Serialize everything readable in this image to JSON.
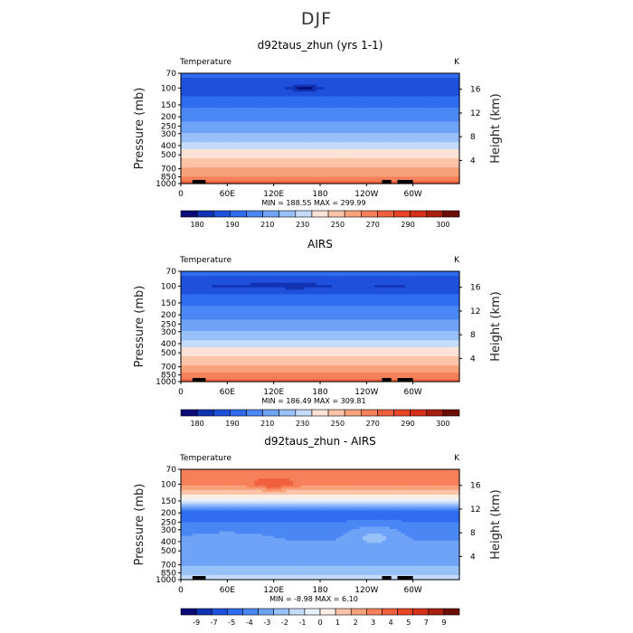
{
  "page_title": "DJF",
  "colors": {
    "temperature_scale": [
      "#0a0a78",
      "#1232b4",
      "#1e50dc",
      "#2f6cf0",
      "#4a87f5",
      "#6ea3f7",
      "#98c0f9",
      "#c4dbfb",
      "#fde3d6",
      "#fbc4a9",
      "#f8a27c",
      "#f5805a",
      "#f0603c",
      "#e84527",
      "#d5301a",
      "#a81f10",
      "#6b0c05"
    ],
    "difference_scale": [
      "#0a0a78",
      "#1232b4",
      "#1e50dc",
      "#2f6cf0",
      "#4a87f5",
      "#6ea3f7",
      "#98c0f9",
      "#c4dbfb",
      "#e8f0fb",
      "#fdeee6",
      "#fbc4a9",
      "#f8a27c",
      "#f5805a",
      "#f0603c",
      "#e84527",
      "#d5301a",
      "#a81f10",
      "#6b0c05"
    ]
  },
  "chart_data": [
    {
      "type": "heatmap",
      "title": "d92taus_zhun (yrs 1-1)",
      "subtitle_left": "Temperature",
      "subtitle_right": "K",
      "ylabel": "Pressure (mb)",
      "ylabel_right": "Height (km)",
      "x_ticks": [
        "0",
        "60E",
        "120E",
        "180",
        "120W",
        "60W"
      ],
      "x_tick_lon": [
        0,
        60,
        120,
        180,
        240,
        300
      ],
      "xlim": [
        0,
        360
      ],
      "y_ticks": [
        "70",
        "100",
        "150",
        "200",
        "250",
        "300",
        "400",
        "500",
        "700",
        "850",
        "1000"
      ],
      "y_tick_p": [
        70,
        100,
        150,
        200,
        250,
        300,
        400,
        500,
        700,
        850,
        1000
      ],
      "ylim": [
        1000,
        70
      ],
      "height_ticks": [
        "16",
        "12",
        "8",
        "4"
      ],
      "height_tick_km": [
        16,
        12,
        8,
        4
      ],
      "minmax_label": "MIN = 188.55   MAX = 299.99",
      "min": 188.55,
      "max": 299.99,
      "profile": [
        [
          70,
          205
        ],
        [
          100,
          192
        ],
        [
          150,
          208
        ],
        [
          200,
          216
        ],
        [
          250,
          224
        ],
        [
          300,
          231
        ],
        [
          400,
          245
        ],
        [
          500,
          256
        ],
        [
          700,
          271
        ],
        [
          850,
          281
        ],
        [
          1000,
          294
        ]
      ],
      "features": [
        {
          "lon": 160,
          "p": 100,
          "dlon": 20,
          "dlogp": 0.05,
          "amp": -10
        }
      ],
      "colorbar": {
        "labels": [
          "180",
          "190",
          "210",
          "230",
          "250",
          "270",
          "290",
          "300"
        ],
        "levels": [
          180,
          185,
          190,
          200,
          210,
          220,
          230,
          240,
          250,
          260,
          270,
          280,
          290,
          295,
          300,
          305
        ]
      }
    },
    {
      "type": "heatmap",
      "title": "AIRS",
      "subtitle_left": "Temperature",
      "subtitle_right": "K",
      "ylabel": "Pressure (mb)",
      "ylabel_right": "Height (km)",
      "x_ticks": [
        "0",
        "60E",
        "120E",
        "180",
        "120W",
        "60W"
      ],
      "x_tick_lon": [
        0,
        60,
        120,
        180,
        240,
        300
      ],
      "xlim": [
        0,
        360
      ],
      "y_ticks": [
        "70",
        "100",
        "150",
        "200",
        "250",
        "300",
        "400",
        "500",
        "700",
        "850",
        "1000"
      ],
      "y_tick_p": [
        70,
        100,
        150,
        200,
        250,
        300,
        400,
        500,
        700,
        850,
        1000
      ],
      "ylim": [
        1000,
        70
      ],
      "height_ticks": [
        "16",
        "12",
        "8",
        "4"
      ],
      "height_tick_km": [
        16,
        12,
        8,
        4
      ],
      "minmax_label": "MIN = 186.49   MAX = 309.81",
      "min": 186.49,
      "max": 309.81,
      "profile": [
        [
          70,
          204
        ],
        [
          100,
          193
        ],
        [
          150,
          207
        ],
        [
          200,
          216
        ],
        [
          250,
          224
        ],
        [
          300,
          231
        ],
        [
          400,
          245
        ],
        [
          500,
          256
        ],
        [
          700,
          271
        ],
        [
          850,
          282
        ],
        [
          1000,
          297
        ]
      ],
      "features": [
        {
          "lon": 90,
          "p": 100,
          "dlon": 60,
          "dlogp": 0.04,
          "amp": -6
        },
        {
          "lon": 160,
          "p": 100,
          "dlon": 40,
          "dlogp": 0.04,
          "amp": -6
        },
        {
          "lon": 270,
          "p": 100,
          "dlon": 30,
          "dlogp": 0.04,
          "amp": -5
        }
      ],
      "colorbar": {
        "labels": [
          "180",
          "190",
          "210",
          "230",
          "250",
          "270",
          "290",
          "300"
        ],
        "levels": [
          180,
          185,
          190,
          200,
          210,
          220,
          230,
          240,
          250,
          260,
          270,
          280,
          290,
          295,
          300,
          305
        ]
      }
    },
    {
      "type": "heatmap",
      "title": "d92taus_zhun - AIRS",
      "subtitle_left": "Temperature",
      "subtitle_right": "K",
      "ylabel": "Pressure (mb)",
      "ylabel_right": "Height (km)",
      "x_ticks": [
        "0",
        "60E",
        "120E",
        "180",
        "120W",
        "60W"
      ],
      "x_tick_lon": [
        0,
        60,
        120,
        180,
        240,
        300
      ],
      "xlim": [
        0,
        360
      ],
      "y_ticks": [
        "70",
        "100",
        "150",
        "200",
        "250",
        "300",
        "400",
        "500",
        "700",
        "850",
        "1000"
      ],
      "y_tick_p": [
        70,
        100,
        150,
        200,
        250,
        300,
        400,
        500,
        700,
        850,
        1000
      ],
      "ylim": [
        1000,
        70
      ],
      "height_ticks": [
        "16",
        "12",
        "8",
        "4"
      ],
      "height_tick_km": [
        16,
        12,
        8,
        4
      ],
      "minmax_label": "MIN =   -8.98   MAX =    6.10",
      "min": -8.98,
      "max": 6.1,
      "profile": [
        [
          70,
          5
        ],
        [
          100,
          4.5
        ],
        [
          130,
          2
        ],
        [
          150,
          0.5
        ],
        [
          170,
          -2
        ],
        [
          200,
          -4.5
        ],
        [
          250,
          -4
        ],
        [
          300,
          -3.5
        ],
        [
          400,
          -3
        ],
        [
          500,
          -2.8
        ],
        [
          700,
          -2.2
        ],
        [
          850,
          -1.2
        ],
        [
          1000,
          -0.5
        ]
      ],
      "features": [
        {
          "lon": 120,
          "p": 100,
          "dlon": 20,
          "dlogp": 0.05,
          "amp": 2
        },
        {
          "lon": 250,
          "p": 350,
          "dlon": 30,
          "dlogp": 0.12,
          "amp": 1.5
        },
        {
          "lon": 60,
          "p": 400,
          "dlon": 50,
          "dlogp": 0.1,
          "amp": 1
        }
      ],
      "colorbar": {
        "labels": [
          "-9",
          "-7",
          "-5",
          "-4",
          "-3",
          "-2",
          "-1",
          "0",
          "1",
          "2",
          "3",
          "4",
          "5",
          "7",
          "9"
        ],
        "levels": [
          -11,
          -9,
          -7,
          -5,
          -4,
          -3,
          -2,
          -1,
          0,
          1,
          2,
          3,
          4,
          5,
          7,
          9,
          11
        ]
      }
    }
  ]
}
